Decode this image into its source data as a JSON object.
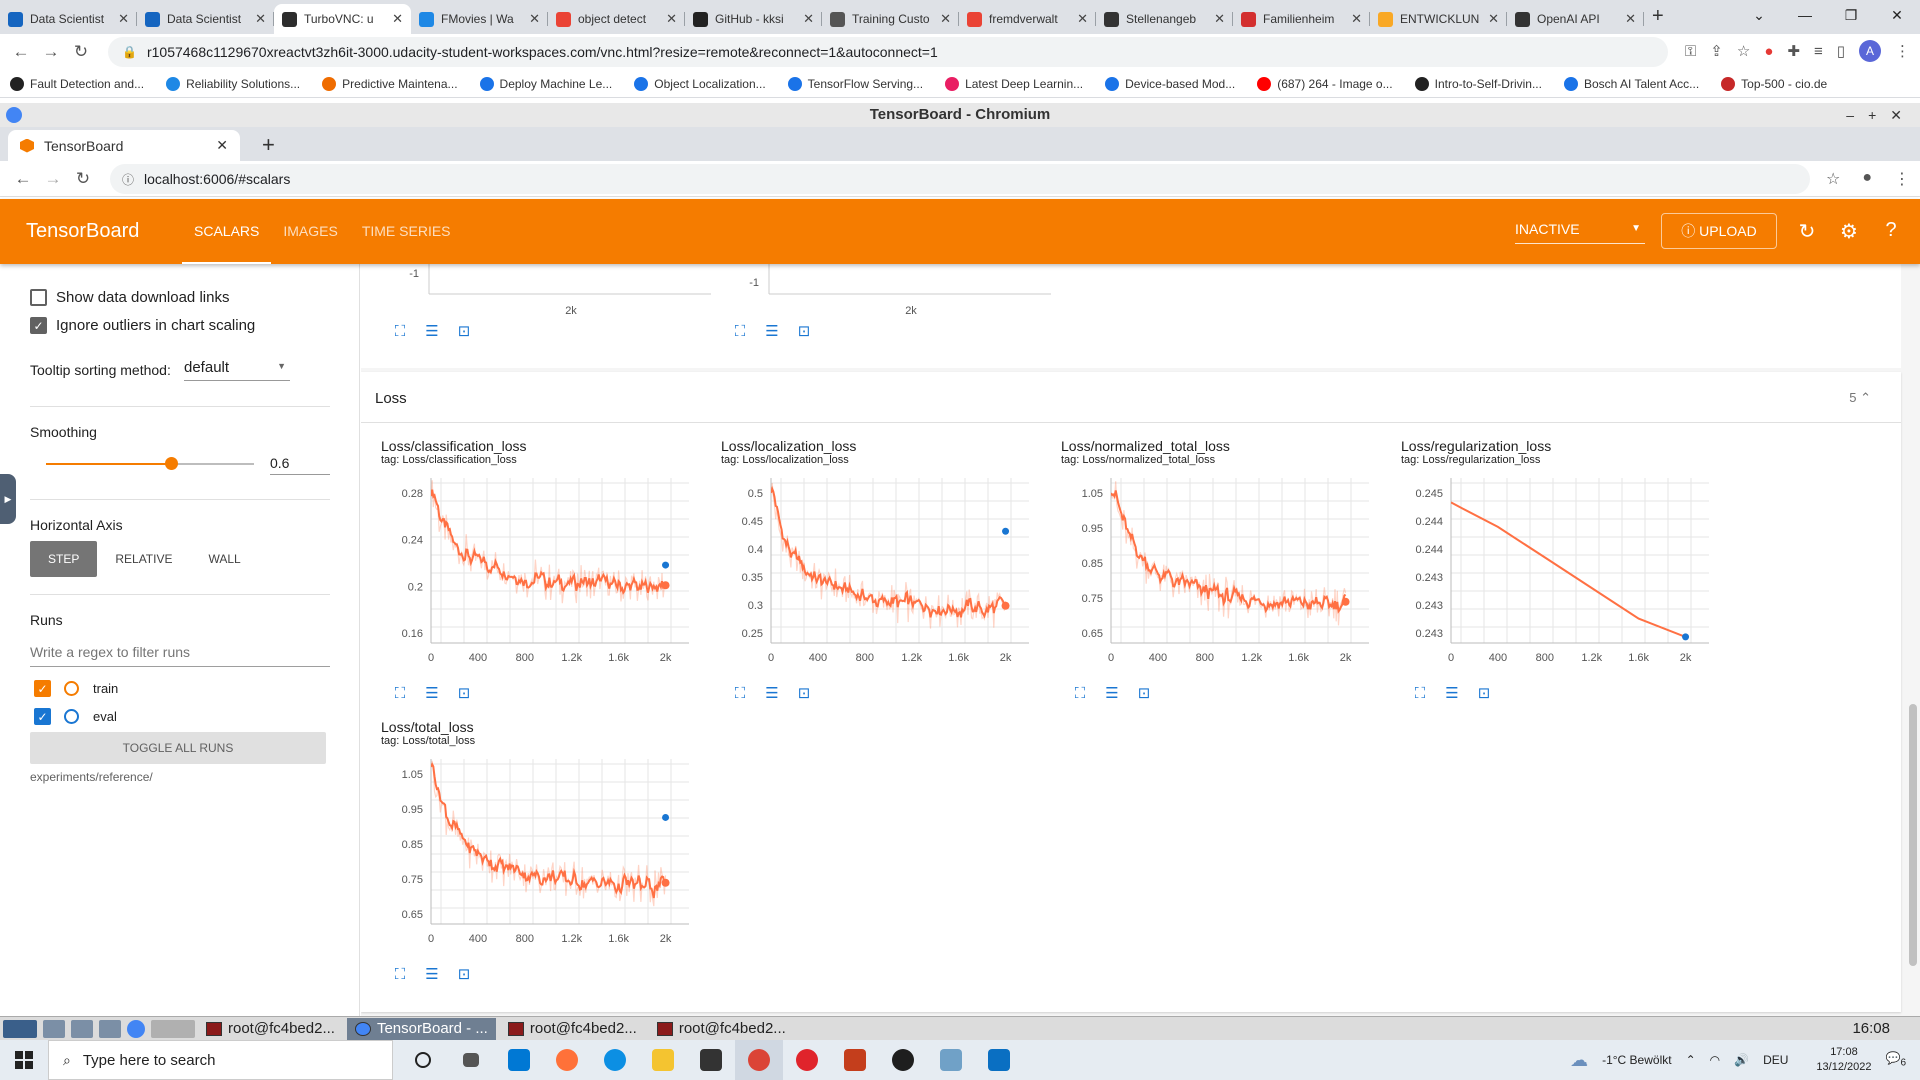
{
  "outer_browser": {
    "tabs": [
      {
        "title": "Data Scientist",
        "color": "#1565c0"
      },
      {
        "title": "Data Scientist",
        "color": "#1565c0"
      },
      {
        "title": "TurboVNC: u",
        "color": "#2d2d2d",
        "active": true
      },
      {
        "title": "FMovies | Wa",
        "color": "#1e88e5"
      },
      {
        "title": "object detect",
        "color": "#ea4335"
      },
      {
        "title": "GitHub - kksi",
        "color": "#222222"
      },
      {
        "title": "Training Custo",
        "color": "#555555"
      },
      {
        "title": "fremdverwalt",
        "color": "#ea4335"
      },
      {
        "title": "Stellenangeb",
        "color": "#333333"
      },
      {
        "title": "Familienheim",
        "color": "#d32f2f"
      },
      {
        "title": "ENTWICKLUN",
        "color": "#f9a825"
      },
      {
        "title": "OpenAI API",
        "color": "#333333"
      }
    ],
    "url": "r1057468c1129670xreactvt3zh6it-3000.udacity-student-workspaces.com/vnc.html?resize=remote&reconnect=1&autoconnect=1",
    "avatar": "A",
    "bookmarks": [
      {
        "label": "Fault Detection and...",
        "color": "#222222"
      },
      {
        "label": "Reliability Solutions...",
        "color": "#1e88e5"
      },
      {
        "label": "Predictive Maintena...",
        "color": "#ef6c00"
      },
      {
        "label": "Deploy Machine Le...",
        "color": "#1a73e8"
      },
      {
        "label": "Object Localization...",
        "color": "#1a73e8"
      },
      {
        "label": "TensorFlow Serving...",
        "color": "#1a73e8"
      },
      {
        "label": "Latest Deep Learnin...",
        "color": "#e91e63"
      },
      {
        "label": "Device-based Mod...",
        "color": "#1a73e8"
      },
      {
        "label": "(687) 264 - Image o...",
        "color": "#ff0000"
      },
      {
        "label": "Intro-to-Self-Drivin...",
        "color": "#222222"
      },
      {
        "label": "Bosch AI Talent Acc...",
        "color": "#1a73e8"
      },
      {
        "label": "Top-500 - cio.de",
        "color": "#c62828"
      }
    ]
  },
  "inner_browser": {
    "window_title": "TensorBoard - Chromium",
    "tab_title": "TensorBoard",
    "url": "localhost:6006/#scalars"
  },
  "tensorboard": {
    "brand": "TensorBoard",
    "tabs": [
      "SCALARS",
      "IMAGES",
      "TIME SERIES"
    ],
    "status": "INACTIVE",
    "upload": "UPLOAD",
    "sidebar": {
      "show_download": "Show data download links",
      "ignore_outliers": "Ignore outliers in chart scaling",
      "tooltip_label": "Tooltip sorting method:",
      "tooltip_value": "default",
      "smoothing_label": "Smoothing",
      "smoothing_value": "0.6",
      "smoothing_fraction": 0.6,
      "axis_label": "Horizontal Axis",
      "axis_options": [
        "STEP",
        "RELATIVE",
        "WALL"
      ],
      "runs_label": "Runs",
      "regex_placeholder": "Write a regex to filter runs",
      "runs": [
        {
          "name": "train",
          "color": "#f57c00"
        },
        {
          "name": "eval",
          "color": "#1976d2"
        }
      ],
      "toggle_all": "TOGGLE ALL RUNS",
      "log_dir": "experiments/reference/"
    },
    "top_charts_ticks": {
      "y": "-1",
      "x": "2k"
    },
    "loss_group": {
      "title": "Loss",
      "count": "5"
    }
  },
  "chart_data": [
    {
      "type": "line",
      "title": "Loss/classification_loss",
      "tag": "tag: Loss/classification_loss",
      "yticks": [
        "0.28",
        "0.24",
        "0.2",
        "0.16"
      ],
      "xticks": [
        "0",
        "400",
        "800",
        "1.2k",
        "1.6k",
        "2k"
      ],
      "ylim": [
        0.13,
        0.31
      ],
      "xlim": [
        0,
        2200
      ],
      "series": [
        {
          "x": [
            0,
            30,
            60,
            100,
            150,
            200,
            300,
            400,
            500,
            600,
            700,
            800,
            900,
            1000,
            1200,
            1400,
            1600,
            1800,
            1900,
            2000
          ],
          "values": [
            0.3,
            0.29,
            0.27,
            0.255,
            0.245,
            0.235,
            0.225,
            0.22,
            0.215,
            0.21,
            0.205,
            0.2,
            0.2,
            0.198,
            0.196,
            0.195,
            0.192,
            0.19,
            0.192,
            0.193
          ]
        },
        {
          "x": [
            2000
          ],
          "values": [
            0.215
          ]
        }
      ]
    },
    {
      "type": "line",
      "title": "Loss/localization_loss",
      "tag": "tag: Loss/localization_loss",
      "yticks": [
        "0.5",
        "0.45",
        "0.4",
        "0.35",
        "0.3",
        "0.25"
      ],
      "xticks": [
        "0",
        "400",
        "800",
        "1.2k",
        "1.6k",
        "2k"
      ],
      "ylim": [
        0.22,
        0.53
      ],
      "xlim": [
        0,
        2200
      ],
      "series": [
        {
          "x": [
            0,
            30,
            60,
            100,
            150,
            200,
            300,
            400,
            500,
            600,
            700,
            800,
            900,
            1000,
            1200,
            1400,
            1600,
            1800,
            1900,
            2000
          ],
          "values": [
            0.52,
            0.48,
            0.44,
            0.41,
            0.39,
            0.375,
            0.355,
            0.34,
            0.33,
            0.32,
            0.31,
            0.305,
            0.3,
            0.297,
            0.292,
            0.288,
            0.285,
            0.282,
            0.285,
            0.29
          ]
        },
        {
          "x": [
            2000
          ],
          "values": [
            0.43
          ]
        }
      ]
    },
    {
      "type": "line",
      "title": "Loss/normalized_total_loss",
      "tag": "tag: Loss/normalized_total_loss",
      "yticks": [
        "1.05",
        "0.95",
        "0.85",
        "0.75",
        "0.65"
      ],
      "xticks": [
        "0",
        "400",
        "800",
        "1.2k",
        "1.6k",
        "2k"
      ],
      "ylim": [
        0.6,
        1.08
      ],
      "xlim": [
        0,
        2200
      ],
      "series": [
        {
          "x": [
            0,
            30,
            60,
            100,
            150,
            200,
            300,
            400,
            500,
            600,
            700,
            800,
            900,
            1000,
            1200,
            1400,
            1600,
            1800,
            1900,
            2000
          ],
          "values": [
            1.08,
            1.03,
            0.98,
            0.94,
            0.9,
            0.87,
            0.83,
            0.8,
            0.785,
            0.77,
            0.76,
            0.75,
            0.74,
            0.735,
            0.725,
            0.72,
            0.715,
            0.71,
            0.715,
            0.72
          ]
        }
      ]
    },
    {
      "type": "line",
      "title": "Loss/regularization_loss",
      "tag": "tag: Loss/regularization_loss",
      "yticks": [
        "0.245",
        "0.244",
        "0.244",
        "0.243",
        "0.243",
        "0.243"
      ],
      "xticks": [
        "0",
        "400",
        "800",
        "1.2k",
        "1.6k",
        "2k"
      ],
      "ylim": [
        0.2425,
        0.2452
      ],
      "xlim": [
        0,
        2200
      ],
      "series": [
        {
          "x": [
            0,
            100,
            400,
            800,
            1200,
            1600,
            2000
          ],
          "values": [
            0.2448,
            0.2447,
            0.2444,
            0.2439,
            0.2434,
            0.2429,
            0.2426
          ]
        }
      ]
    },
    {
      "type": "line",
      "title": "Loss/total_loss",
      "tag": "tag: Loss/total_loss",
      "yticks": [
        "1.05",
        "0.95",
        "0.85",
        "0.75",
        "0.65"
      ],
      "xticks": [
        "0",
        "400",
        "800",
        "1.2k",
        "1.6k",
        "2k"
      ],
      "ylim": [
        0.6,
        1.08
      ],
      "xlim": [
        0,
        2200
      ],
      "series": [
        {
          "x": [
            0,
            30,
            60,
            100,
            150,
            200,
            300,
            400,
            500,
            600,
            700,
            800,
            900,
            1000,
            1200,
            1400,
            1600,
            1800,
            1900,
            2000
          ],
          "values": [
            1.08,
            1.03,
            0.98,
            0.94,
            0.9,
            0.87,
            0.83,
            0.8,
            0.785,
            0.77,
            0.76,
            0.75,
            0.74,
            0.735,
            0.725,
            0.72,
            0.715,
            0.71,
            0.715,
            0.72
          ]
        },
        {
          "x": [
            2000
          ],
          "values": [
            0.91
          ]
        }
      ]
    }
  ],
  "vnc_taskbar": {
    "items": [
      "root@fc4bed2...",
      "TensorBoard - ...",
      "root@fc4bed2...",
      "root@fc4bed2..."
    ],
    "clock": "16:08"
  },
  "windows_taskbar": {
    "search_placeholder": "Type here to search",
    "weather": "-1°C  Bewölkt",
    "lang": "DEU",
    "time": "17:08",
    "date": "13/12/2022",
    "notifications": "6"
  }
}
